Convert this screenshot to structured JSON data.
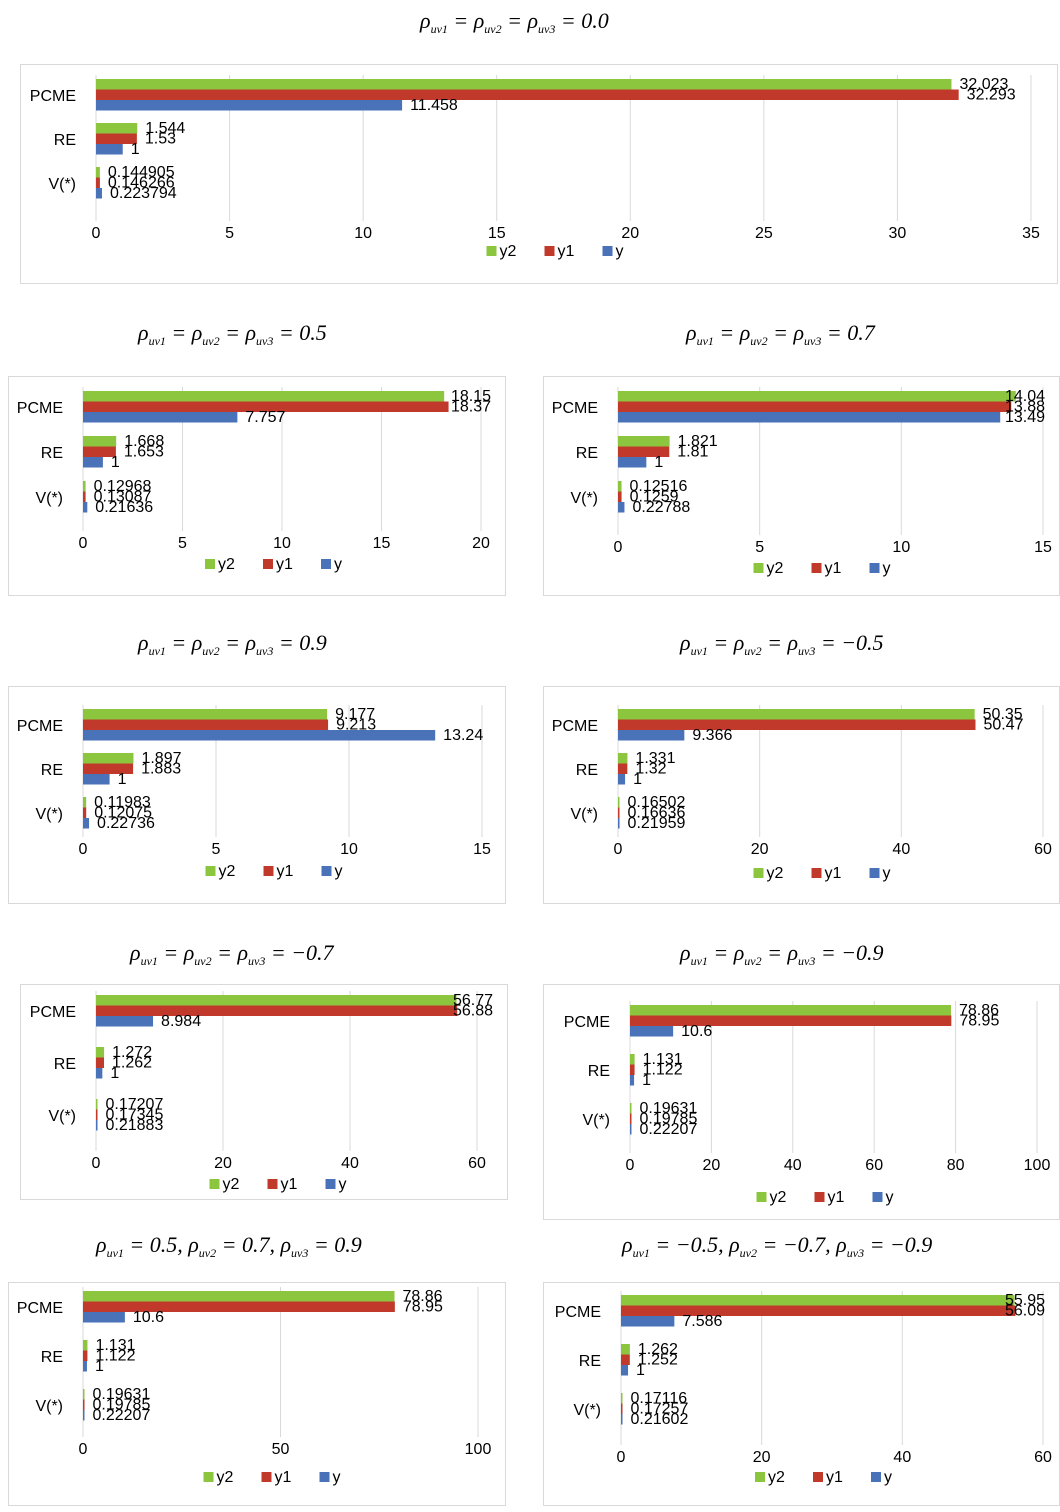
{
  "colors": {
    "y2": "#8cc63e",
    "y1": "#c0392b",
    "y": "#4a72b8",
    "grid": "#d9d9d9",
    "border": "#d9d9d9"
  },
  "series_names": [
    "y2",
    "y1",
    "y"
  ],
  "categories": [
    "PCME",
    "RE",
    "V(*)"
  ],
  "chart_data": [
    {
      "type": "bar",
      "orientation": "horizontal",
      "caption": "ρuv1 = ρuv2 = ρuv3 = 0.0",
      "categories": [
        "PCME",
        "RE",
        "V(*)"
      ],
      "series": [
        {
          "name": "y2",
          "values": [
            32.023,
            1.544,
            0.144905
          ],
          "labels": [
            "32.023",
            "1.544",
            "0.144905"
          ]
        },
        {
          "name": "y1",
          "values": [
            32.293,
            1.53,
            0.146266
          ],
          "labels": [
            "32.293",
            "1.53",
            "0.146266"
          ]
        },
        {
          "name": "y",
          "values": [
            11.458,
            1,
            0.223794
          ],
          "labels": [
            "11.458",
            "1",
            "0.223794"
          ]
        }
      ],
      "xlim": [
        0,
        35
      ],
      "ticks": [
        "0",
        "5",
        "10",
        "15",
        "20",
        "25",
        "30",
        "35"
      ],
      "legend": "bottom",
      "grid": true
    },
    {
      "type": "bar",
      "orientation": "horizontal",
      "caption": "ρuv1 = ρuv2 = ρuv3 = 0.5",
      "categories": [
        "PCME",
        "RE",
        "V(*)"
      ],
      "series": [
        {
          "name": "y2",
          "values": [
            18.15,
            1.668,
            0.12968
          ],
          "labels": [
            "18.15",
            "1.668",
            "0.12968"
          ]
        },
        {
          "name": "y1",
          "values": [
            18.37,
            1.653,
            0.13087
          ],
          "labels": [
            "18.37",
            "1.653",
            "0.13087"
          ]
        },
        {
          "name": "y",
          "values": [
            7.757,
            1,
            0.21636
          ],
          "labels": [
            "7.757",
            "1",
            "0.21636"
          ]
        }
      ],
      "xlim": [
        0,
        20
      ],
      "ticks": [
        "0",
        "5",
        "10",
        "15",
        "20"
      ],
      "legend": "bottom",
      "grid": true
    },
    {
      "type": "bar",
      "orientation": "horizontal",
      "caption": "ρuv1 = ρuv2 = ρuv3 = 0.7",
      "categories": [
        "PCME",
        "RE",
        "V(*)"
      ],
      "series": [
        {
          "name": "y2",
          "values": [
            14.04,
            1.821,
            0.12516
          ],
          "labels": [
            "14.04",
            "1.821",
            "0.12516"
          ]
        },
        {
          "name": "y1",
          "values": [
            13.88,
            1.81,
            0.1259
          ],
          "labels": [
            "13.88",
            "1.81",
            "0.1259"
          ]
        },
        {
          "name": "y",
          "values": [
            13.49,
            1,
            0.22788
          ],
          "labels": [
            "13.49",
            "1",
            "0.22788"
          ]
        }
      ],
      "xlim": [
        0,
        15
      ],
      "ticks": [
        "0",
        "5",
        "10",
        "15"
      ],
      "legend": "bottom",
      "grid": true
    },
    {
      "type": "bar",
      "orientation": "horizontal",
      "caption": "ρuv1 = ρuv2 = ρuv3 = 0.9",
      "categories": [
        "PCME",
        "RE",
        "V(*)"
      ],
      "series": [
        {
          "name": "y2",
          "values": [
            9.177,
            1.897,
            0.11983
          ],
          "labels": [
            "9.177",
            "1.897",
            "0.11983"
          ]
        },
        {
          "name": "y1",
          "values": [
            9.213,
            1.883,
            0.12075
          ],
          "labels": [
            "9.213",
            "1.883",
            "0.12075"
          ]
        },
        {
          "name": "y",
          "values": [
            13.24,
            1,
            0.22736
          ],
          "labels": [
            "13.24",
            "1",
            "0.22736"
          ]
        }
      ],
      "xlim": [
        0,
        15
      ],
      "ticks": [
        "0",
        "5",
        "10",
        "15"
      ],
      "legend": "bottom",
      "grid": true
    },
    {
      "type": "bar",
      "orientation": "horizontal",
      "caption": "ρuv1 = ρuv2 = ρuv3 = −0.5",
      "categories": [
        "PCME",
        "RE",
        "V(*)"
      ],
      "series": [
        {
          "name": "y2",
          "values": [
            50.35,
            1.331,
            0.16502
          ],
          "labels": [
            "50.35",
            "1.331",
            "0.16502"
          ]
        },
        {
          "name": "y1",
          "values": [
            50.47,
            1.32,
            0.16636
          ],
          "labels": [
            "50.47",
            "1.32",
            "0.16636"
          ]
        },
        {
          "name": "y",
          "values": [
            9.366,
            1,
            0.21959
          ],
          "labels": [
            "9.366",
            "1",
            "0.21959"
          ]
        }
      ],
      "xlim": [
        0,
        60
      ],
      "ticks": [
        "0",
        "20",
        "40",
        "60"
      ],
      "legend": "bottom",
      "grid": true
    },
    {
      "type": "bar",
      "orientation": "horizontal",
      "caption": "ρuv1 = ρuv2 = ρuv3 = −0.7",
      "categories": [
        "PCME",
        "RE",
        "V(*)"
      ],
      "series": [
        {
          "name": "y2",
          "values": [
            56.77,
            1.272,
            0.17207
          ],
          "labels": [
            "56.77",
            "1.272",
            "0.17207"
          ]
        },
        {
          "name": "y1",
          "values": [
            56.88,
            1.262,
            0.17345
          ],
          "labels": [
            "56.88",
            "1.262",
            "0.17345"
          ]
        },
        {
          "name": "y",
          "values": [
            8.984,
            1,
            0.21883
          ],
          "labels": [
            "8.984",
            "1",
            "0.21883"
          ]
        }
      ],
      "xlim": [
        0,
        60
      ],
      "ticks": [
        "0",
        "20",
        "40",
        "60"
      ],
      "legend": "bottom",
      "grid": true
    },
    {
      "type": "bar",
      "orientation": "horizontal",
      "caption": "ρuv1 = ρuv2 = ρuv3 = −0.9",
      "categories": [
        "PCME",
        "RE",
        "V(*)"
      ],
      "series": [
        {
          "name": "y2",
          "values": [
            78.86,
            1.131,
            0.19631
          ],
          "labels": [
            "78.86",
            "1.131",
            "0.19631"
          ]
        },
        {
          "name": "y1",
          "values": [
            78.95,
            1.122,
            0.19785
          ],
          "labels": [
            "78.95",
            "1.122",
            "0.19785"
          ]
        },
        {
          "name": "y",
          "values": [
            10.6,
            1,
            0.22207
          ],
          "labels": [
            "10.6",
            "1",
            "0.22207"
          ]
        }
      ],
      "xlim": [
        0,
        100
      ],
      "ticks": [
        "0",
        "20",
        "40",
        "60",
        "80",
        "100"
      ],
      "legend": "bottom",
      "grid": true
    },
    {
      "type": "bar",
      "orientation": "horizontal",
      "caption": "ρuv1 = 0.5, ρuv2 = 0.7, ρuv3 = 0.9",
      "categories": [
        "PCME",
        "RE",
        "V(*)"
      ],
      "series": [
        {
          "name": "y2",
          "values": [
            78.86,
            1.131,
            0.19631
          ],
          "labels": [
            "78.86",
            "1.131",
            "0.19631"
          ]
        },
        {
          "name": "y1",
          "values": [
            78.95,
            1.122,
            0.19785
          ],
          "labels": [
            "78.95",
            "1.122",
            "0.19785"
          ]
        },
        {
          "name": "y",
          "values": [
            10.6,
            1,
            0.22207
          ],
          "labels": [
            "10.6",
            "1",
            "0.22207"
          ]
        }
      ],
      "xlim": [
        0,
        100
      ],
      "ticks": [
        "0",
        "50",
        "100"
      ],
      "legend": "bottom",
      "grid": true
    },
    {
      "type": "bar",
      "orientation": "horizontal",
      "caption": "ρuv1 = −0.5, ρuv2 = −0.7, ρuv3 = −0.9",
      "categories": [
        "PCME",
        "RE",
        "V(*)"
      ],
      "series": [
        {
          "name": "y2",
          "values": [
            55.95,
            1.262,
            0.17116
          ],
          "labels": [
            "55.95",
            "1.262",
            "0.17116"
          ]
        },
        {
          "name": "y1",
          "values": [
            56.09,
            1.252,
            0.17257
          ],
          "labels": [
            "56.09",
            "1.252",
            "0.17257"
          ]
        },
        {
          "name": "y",
          "values": [
            7.586,
            1,
            0.21602
          ],
          "labels": [
            "7.586",
            "1",
            "0.21602"
          ]
        }
      ],
      "xlim": [
        0,
        60
      ],
      "ticks": [
        "0",
        "20",
        "40",
        "60"
      ],
      "legend": "bottom",
      "grid": true
    }
  ]
}
